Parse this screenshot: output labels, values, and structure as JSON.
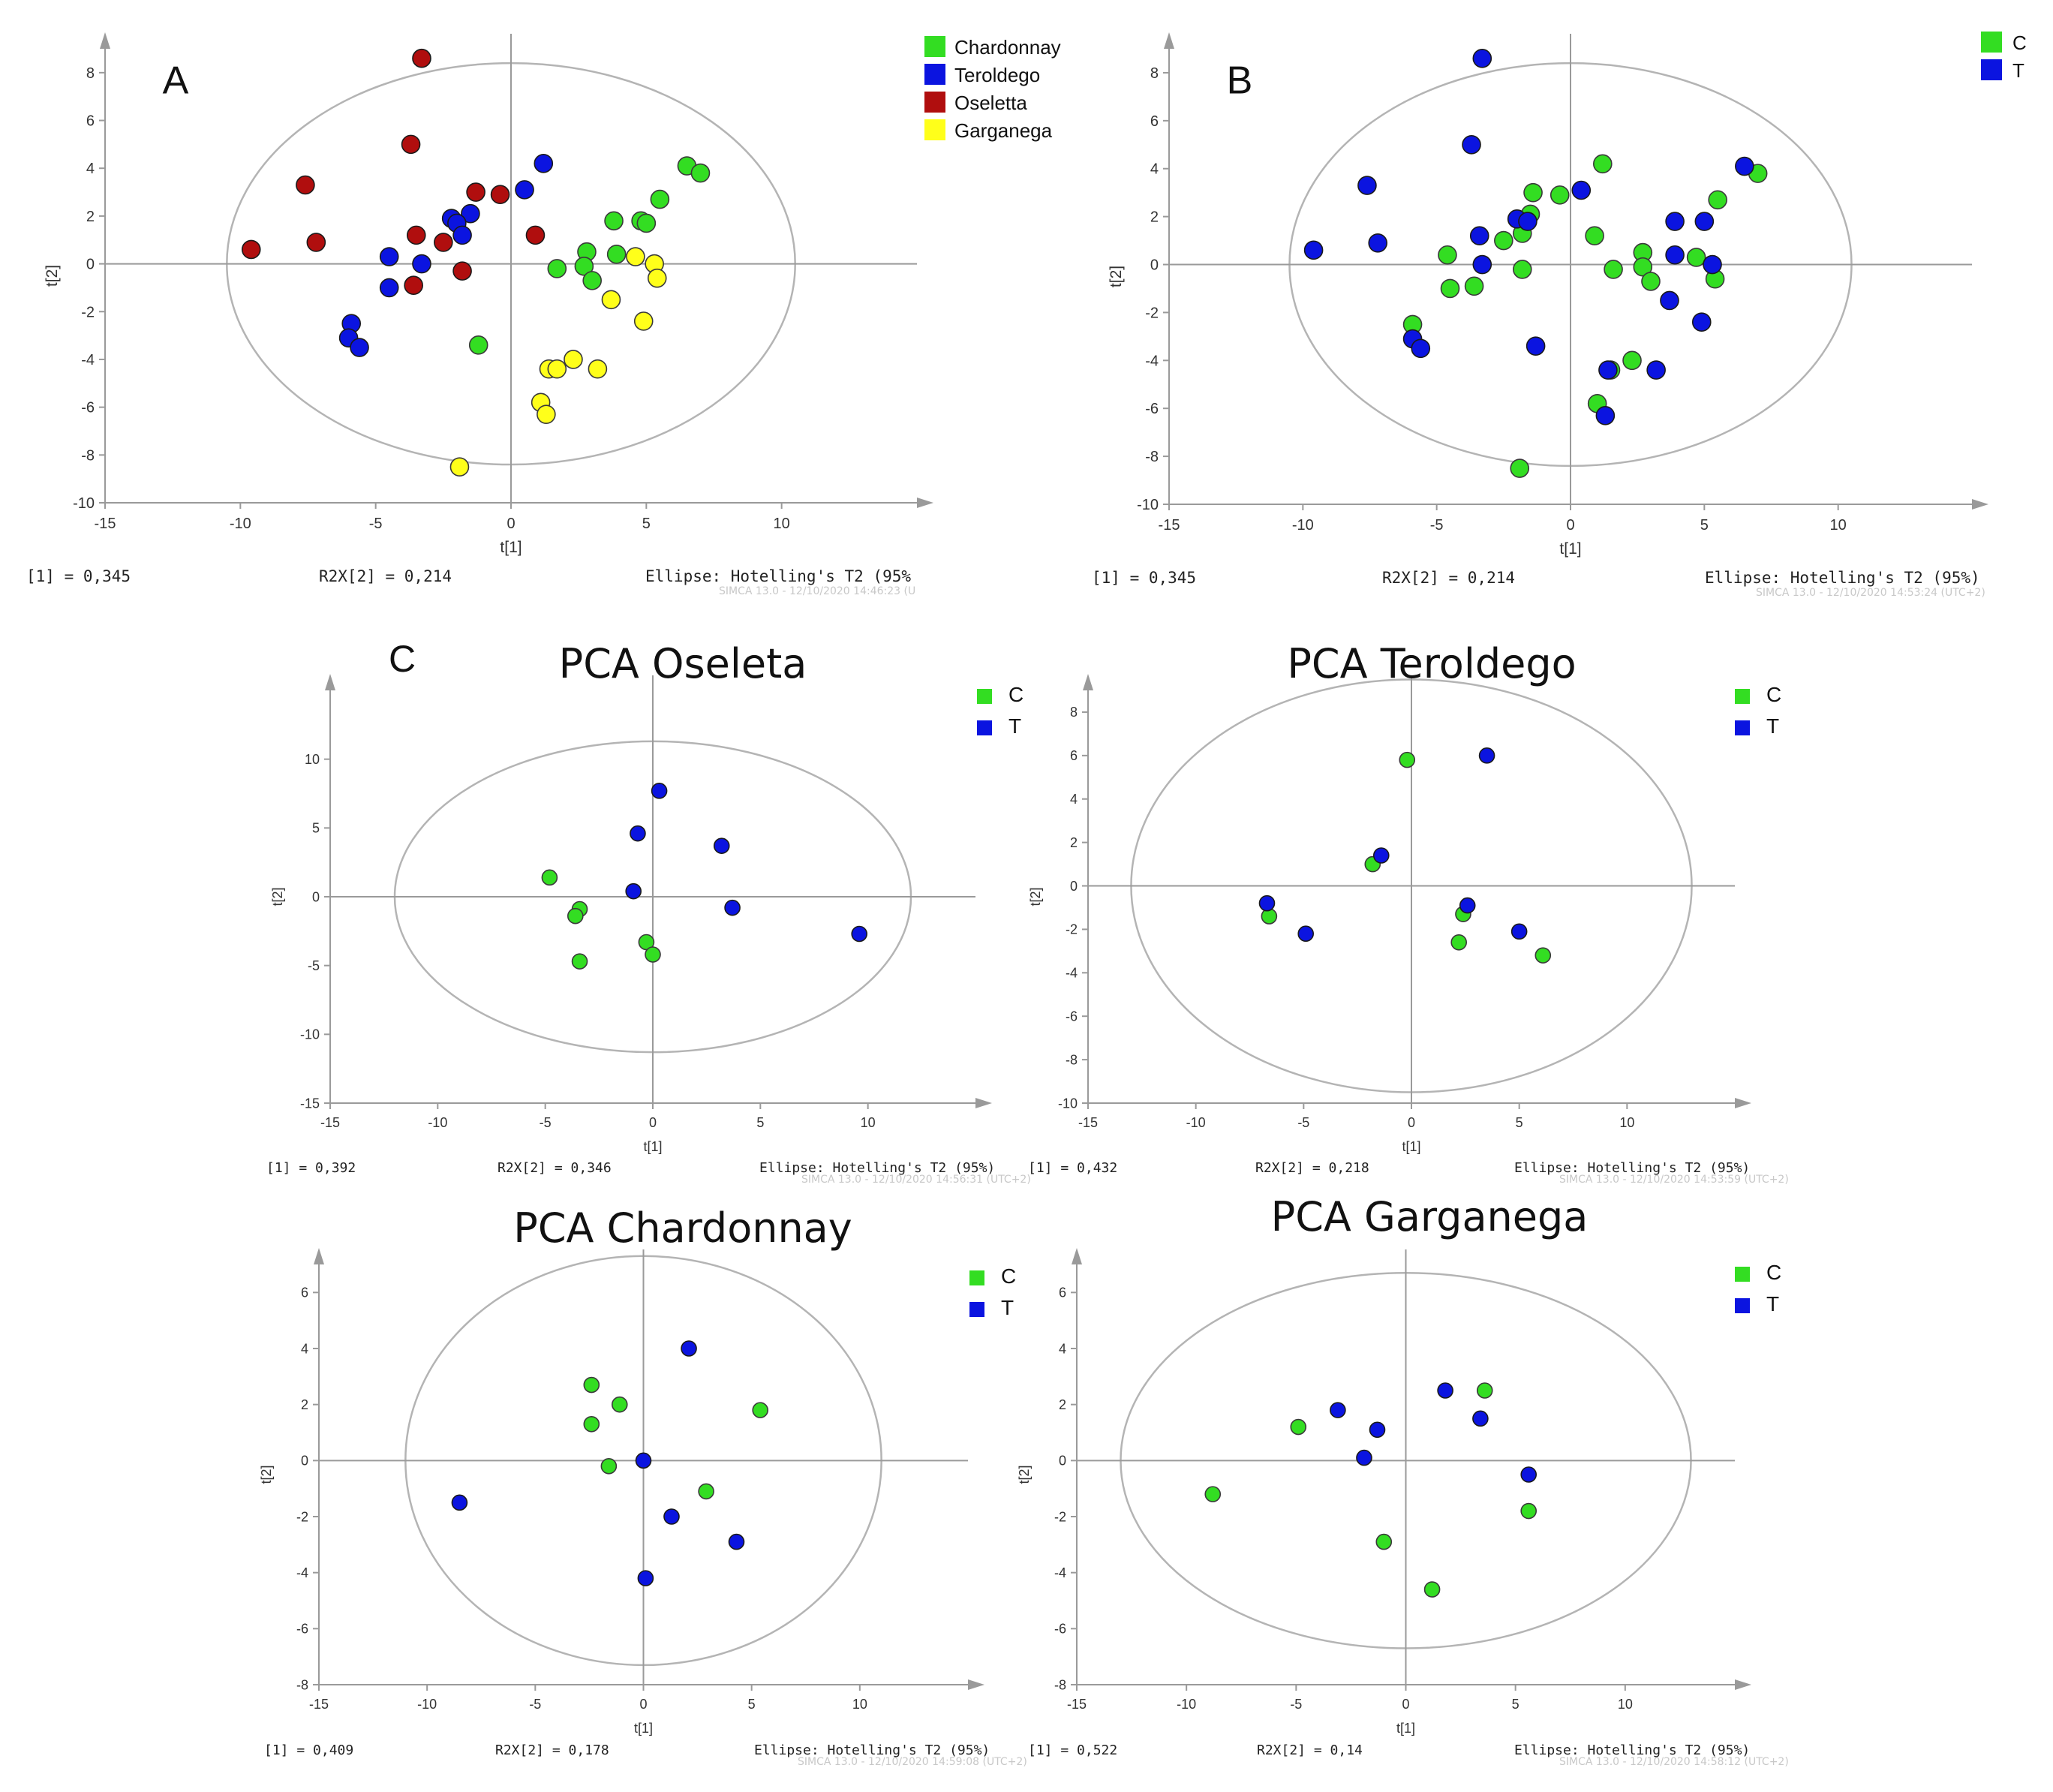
{
  "colors": {
    "green": "#33dd22",
    "blue": "#0b14e0",
    "red": "#b00e0e",
    "yellow": "#ffff1a",
    "axis": "#9a9a9a",
    "ellipse": "#b4b4b4"
  },
  "chart_data": [
    {
      "id": "A",
      "panel_label": "A",
      "title": "",
      "type": "scatter",
      "xlabel": "t[1]",
      "ylabel": "t[2]",
      "xlim": [
        -15,
        15
      ],
      "ylim": [
        -10,
        9
      ],
      "xticks": [
        "-15",
        "-10",
        "-5",
        "0",
        "5",
        "10"
      ],
      "yticks": [
        "-10",
        "-8",
        "-6",
        "-4",
        "-2",
        "0",
        "2",
        "4",
        "6",
        "8"
      ],
      "ellipse": {
        "rx": 10.5,
        "ry": 8.4
      },
      "footer": {
        "left": "[1] = 0,345",
        "mid": "R2X[2] = 0,214",
        "right": "Ellipse: Hotelling's T2 (95%",
        "stamp": "SIMCA 13.0 - 12/10/2020 14:46:23 (U"
      },
      "legend": [
        "Chardonnay",
        "Teroldego",
        "Oseletta",
        "Garganega"
      ],
      "series": [
        {
          "name": "Chardonnay",
          "color": "green",
          "points": [
            [
              6.5,
              4.1
            ],
            [
              7,
              3.8
            ],
            [
              5.5,
              2.7
            ],
            [
              4.8,
              1.8
            ],
            [
              5,
              1.7
            ],
            [
              3.8,
              1.8
            ],
            [
              2.8,
              0.5
            ],
            [
              3.9,
              0.4
            ],
            [
              2.7,
              -0.1
            ],
            [
              1.7,
              -0.2
            ],
            [
              3,
              -0.7
            ],
            [
              -1.2,
              -3.4
            ]
          ]
        },
        {
          "name": "Teroldego",
          "color": "blue",
          "points": [
            [
              1.2,
              4.2
            ],
            [
              0.5,
              3.1
            ],
            [
              -1.5,
              2.1
            ],
            [
              -2.2,
              1.9
            ],
            [
              -2,
              1.7
            ],
            [
              -1.8,
              1.2
            ],
            [
              -4.5,
              0.3
            ],
            [
              -3.3,
              0
            ],
            [
              -4.5,
              -1
            ],
            [
              -5.9,
              -2.5
            ],
            [
              -6,
              -3.1
            ],
            [
              -5.6,
              -3.5
            ]
          ]
        },
        {
          "name": "Oseletta",
          "color": "red",
          "points": [
            [
              -3.3,
              8.6
            ],
            [
              -3.7,
              5
            ],
            [
              -7.6,
              3.3
            ],
            [
              -1.3,
              3
            ],
            [
              -0.4,
              2.9
            ],
            [
              -7.2,
              0.9
            ],
            [
              -3.5,
              1.2
            ],
            [
              -2.5,
              0.9
            ],
            [
              -9.6,
              0.6
            ],
            [
              0.9,
              1.2
            ],
            [
              -1.8,
              -0.3
            ],
            [
              -3.6,
              -0.9
            ]
          ]
        },
        {
          "name": "Garganega",
          "color": "yellow",
          "points": [
            [
              4.6,
              0.3
            ],
            [
              5.3,
              0
            ],
            [
              5.4,
              -0.6
            ],
            [
              3.7,
              -1.5
            ],
            [
              4.9,
              -2.4
            ],
            [
              2.3,
              -4
            ],
            [
              1.4,
              -4.4
            ],
            [
              1.7,
              -4.4
            ],
            [
              3.2,
              -4.4
            ],
            [
              1.1,
              -5.8
            ],
            [
              1.3,
              -6.3
            ],
            [
              -1.9,
              -8.5
            ]
          ]
        }
      ]
    },
    {
      "id": "B",
      "panel_label": "B",
      "title": "",
      "type": "scatter",
      "xlabel": "t[1]",
      "ylabel": "t[2]",
      "xlim": [
        -15,
        15
      ],
      "ylim": [
        -10,
        9
      ],
      "xticks": [
        "-15",
        "-10",
        "-5",
        "0",
        "5",
        "10"
      ],
      "yticks": [
        "-10",
        "-8",
        "-6",
        "-4",
        "-2",
        "0",
        "2",
        "4",
        "6",
        "8"
      ],
      "ellipse": {
        "rx": 10.5,
        "ry": 8.4
      },
      "footer": {
        "left": "[1] = 0,345",
        "mid": "R2X[2] = 0,214",
        "right": "Ellipse: Hotelling's T2 (95%)",
        "stamp": "SIMCA 13.0 - 12/10/2020 14:53:24 (UTC+2)"
      },
      "legend": [
        "C",
        "T"
      ],
      "series": [
        {
          "name": "C",
          "color": "green",
          "points": [
            [
              1.2,
              4.2
            ],
            [
              7,
              3.8
            ],
            [
              5.5,
              2.7
            ],
            [
              -1.4,
              3
            ],
            [
              -0.4,
              2.9
            ],
            [
              -1.5,
              2.1
            ],
            [
              -1.8,
              1.3
            ],
            [
              -2.5,
              1
            ],
            [
              0.9,
              1.2
            ],
            [
              -4.6,
              0.4
            ],
            [
              2.7,
              0.5
            ],
            [
              4.7,
              0.3
            ],
            [
              2.7,
              -0.1
            ],
            [
              1.6,
              -0.2
            ],
            [
              -1.8,
              -0.2
            ],
            [
              3,
              -0.7
            ],
            [
              5.4,
              -0.6
            ],
            [
              -4.5,
              -1
            ],
            [
              -3.6,
              -0.9
            ],
            [
              -5.9,
              -2.5
            ],
            [
              2.3,
              -4
            ],
            [
              1.5,
              -4.4
            ],
            [
              1,
              -5.8
            ],
            [
              -1.9,
              -8.5
            ]
          ]
        },
        {
          "name": "T",
          "color": "blue",
          "points": [
            [
              -3.3,
              8.6
            ],
            [
              -3.7,
              5
            ],
            [
              6.5,
              4.1
            ],
            [
              -7.6,
              3.3
            ],
            [
              0.4,
              3.1
            ],
            [
              -2,
              1.9
            ],
            [
              -1.6,
              1.8
            ],
            [
              3.9,
              1.8
            ],
            [
              5,
              1.8
            ],
            [
              -3.4,
              1.2
            ],
            [
              -7.2,
              0.9
            ],
            [
              -9.6,
              0.6
            ],
            [
              3.9,
              0.4
            ],
            [
              5.3,
              0
            ],
            [
              -3.3,
              0
            ],
            [
              3.7,
              -1.5
            ],
            [
              4.9,
              -2.4
            ],
            [
              -5.9,
              -3.1
            ],
            [
              -5.6,
              -3.5
            ],
            [
              -1.3,
              -3.4
            ],
            [
              1.4,
              -4.4
            ],
            [
              3.2,
              -4.4
            ],
            [
              1.3,
              -6.3
            ]
          ]
        }
      ]
    },
    {
      "id": "Oseleta",
      "panel_label": "C",
      "title": "PCA Oseleta",
      "type": "scatter",
      "xlabel": "t[1]",
      "ylabel": "t[2]",
      "xlim": [
        -15,
        15
      ],
      "ylim": [
        -15,
        15
      ],
      "xticks": [
        "-15",
        "-10",
        "-5",
        "0",
        "5",
        "10"
      ],
      "yticks": [
        "-15",
        "-10",
        "-5",
        "0",
        "5",
        "10"
      ],
      "ellipse": {
        "rx": 12,
        "ry": 11.3
      },
      "footer": {
        "left": "[1] = 0,392",
        "mid": "R2X[2] = 0,346",
        "right": "Ellipse: Hotelling's T2 (95%)",
        "stamp": "SIMCA 13.0 - 12/10/2020 14:56:31 (UTC+2)"
      },
      "legend": [
        "C",
        "T"
      ],
      "series": [
        {
          "name": "C",
          "color": "green",
          "points": [
            [
              -4.8,
              1.4
            ],
            [
              -3.4,
              -0.9
            ],
            [
              -3.6,
              -1.4
            ],
            [
              -3.4,
              -4.7
            ],
            [
              -0.3,
              -3.3
            ],
            [
              0,
              -4.2
            ]
          ]
        },
        {
          "name": "T",
          "color": "blue",
          "points": [
            [
              0.3,
              7.7
            ],
            [
              -0.7,
              4.6
            ],
            [
              3.2,
              3.7
            ],
            [
              -0.9,
              0.4
            ],
            [
              3.7,
              -0.8
            ],
            [
              9.6,
              -2.7
            ]
          ]
        }
      ]
    },
    {
      "id": "Teroldego",
      "panel_label": "",
      "title": "PCA Teroldego",
      "type": "scatter",
      "xlabel": "t[1]",
      "ylabel": "t[2]",
      "xlim": [
        -15,
        15
      ],
      "ylim": [
        -10,
        9
      ],
      "xticks": [
        "-15",
        "-10",
        "-5",
        "0",
        "5",
        "10"
      ],
      "yticks": [
        "-10",
        "-8",
        "-6",
        "-4",
        "-2",
        "0",
        "2",
        "4",
        "6",
        "8"
      ],
      "ellipse": {
        "rx": 13,
        "ry": 9.5
      },
      "footer": {
        "left": "[1] = 0,432",
        "mid": "R2X[2] = 0,218",
        "right": "Ellipse: Hotelling's T2 (95%)",
        "stamp": "SIMCA 13.0 - 12/10/2020 14:53:59 (UTC+2)"
      },
      "legend": [
        "C",
        "T"
      ],
      "series": [
        {
          "name": "C",
          "color": "green",
          "points": [
            [
              -0.2,
              5.8
            ],
            [
              -1.8,
              1
            ],
            [
              -6.6,
              -1.4
            ],
            [
              2.4,
              -1.3
            ],
            [
              2.2,
              -2.6
            ],
            [
              6.1,
              -3.2
            ]
          ]
        },
        {
          "name": "T",
          "color": "blue",
          "points": [
            [
              3.5,
              6
            ],
            [
              -1.4,
              1.4
            ],
            [
              -6.7,
              -0.8
            ],
            [
              2.6,
              -0.9
            ],
            [
              -4.9,
              -2.2
            ],
            [
              5,
              -2.1
            ]
          ]
        }
      ]
    },
    {
      "id": "Chardonnay",
      "panel_label": "",
      "title": "PCA Chardonnay",
      "type": "scatter",
      "xlabel": "t[1]",
      "ylabel": "t[2]",
      "xlim": [
        -15,
        15
      ],
      "ylim": [
        -8,
        7
      ],
      "xticks": [
        "-15",
        "-10",
        "-5",
        "0",
        "5",
        "10"
      ],
      "yticks": [
        "-8",
        "-6",
        "-4",
        "-2",
        "0",
        "2",
        "4",
        "6"
      ],
      "ellipse": {
        "rx": 11,
        "ry": 7.3
      },
      "footer": {
        "left": "[1] = 0,409",
        "mid": "R2X[2] = 0,178",
        "right": "Ellipse: Hotelling's T2 (95%)",
        "stamp": "SIMCA 13.0 - 12/10/2020 14:59:08 (UTC+2)"
      },
      "legend": [
        "C",
        "T"
      ],
      "series": [
        {
          "name": "C",
          "color": "green",
          "points": [
            [
              -2.4,
              2.7
            ],
            [
              -1.1,
              2
            ],
            [
              -2.4,
              1.3
            ],
            [
              5.4,
              1.8
            ],
            [
              -1.6,
              -0.2
            ],
            [
              2.9,
              -1.1
            ]
          ]
        },
        {
          "name": "T",
          "color": "blue",
          "points": [
            [
              2.1,
              4
            ],
            [
              -8.5,
              -1.5
            ],
            [
              0,
              0
            ],
            [
              1.3,
              -2
            ],
            [
              4.3,
              -2.9
            ],
            [
              0.1,
              -4.2
            ]
          ]
        }
      ]
    },
    {
      "id": "Garganega",
      "panel_label": "",
      "title": "PCA Garganega",
      "type": "scatter",
      "xlabel": "t[1]",
      "ylabel": "t[2]",
      "xlim": [
        -15,
        15
      ],
      "ylim": [
        -8,
        7
      ],
      "xticks": [
        "-15",
        "-10",
        "-5",
        "0",
        "5",
        "10"
      ],
      "yticks": [
        "-8",
        "-6",
        "-4",
        "-2",
        "0",
        "2",
        "4",
        "6"
      ],
      "ellipse": {
        "rx": 13,
        "ry": 6.7
      },
      "footer": {
        "left": "[1] = 0,522",
        "mid": "R2X[2] = 0,14",
        "right": "Ellipse: Hotelling's T2 (95%)",
        "stamp": "SIMCA 13.0 - 12/10/2020 14:58:12 (UTC+2)"
      },
      "legend": [
        "C",
        "T"
      ],
      "series": [
        {
          "name": "C",
          "color": "green",
          "points": [
            [
              3.6,
              2.5
            ],
            [
              -4.9,
              1.2
            ],
            [
              -8.8,
              -1.2
            ],
            [
              5.6,
              -1.8
            ],
            [
              -1,
              -2.9
            ],
            [
              1.2,
              -4.6
            ]
          ]
        },
        {
          "name": "T",
          "color": "blue",
          "points": [
            [
              1.8,
              2.5
            ],
            [
              -3.1,
              1.8
            ],
            [
              3.4,
              1.5
            ],
            [
              -1.3,
              1.1
            ],
            [
              -1.9,
              0.1
            ],
            [
              5.6,
              -0.5
            ]
          ]
        }
      ]
    }
  ]
}
